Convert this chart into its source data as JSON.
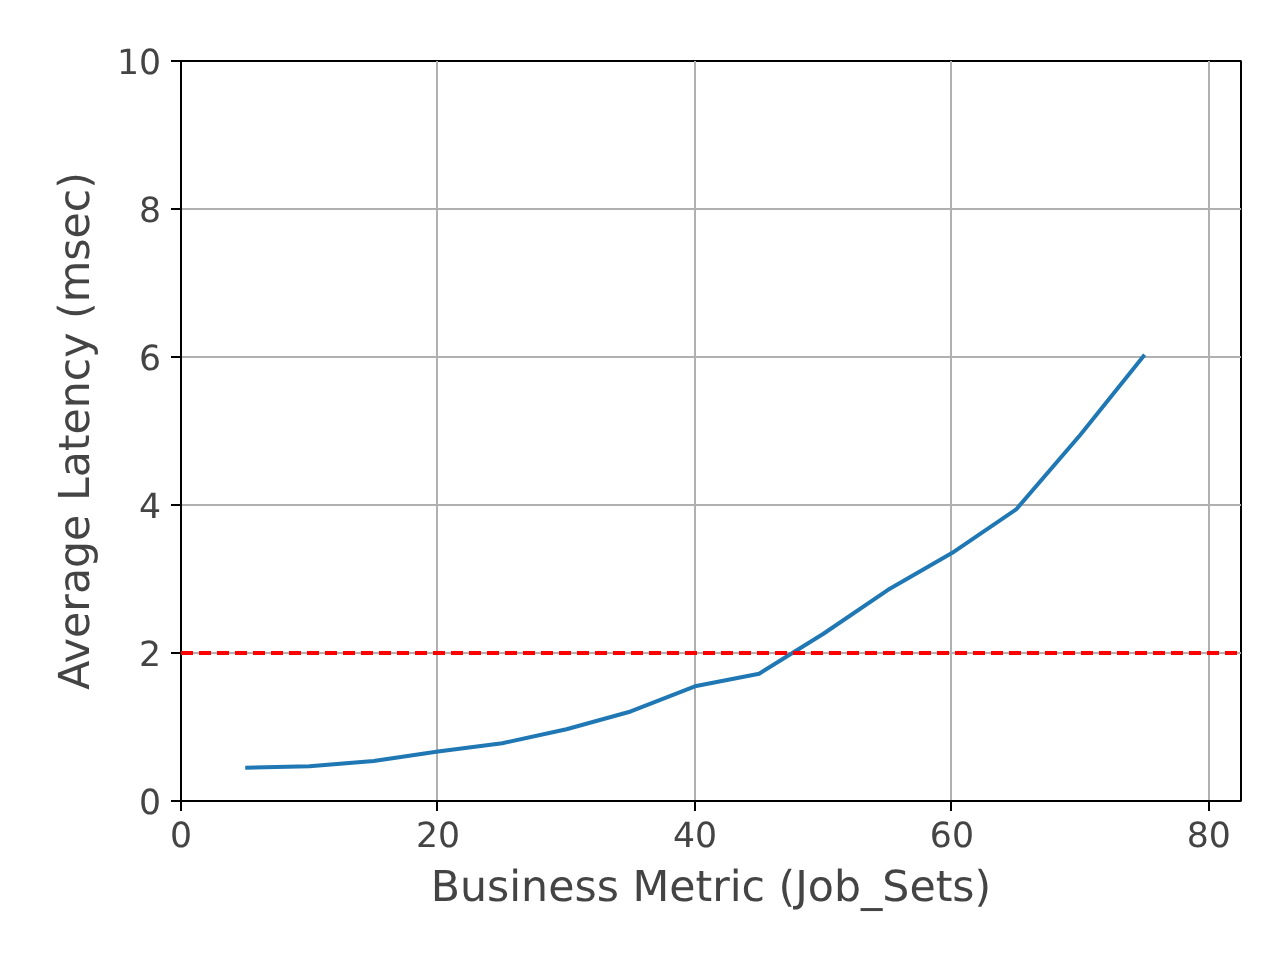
{
  "chart_data": {
    "type": "line",
    "xlabel": "Business Metric (Job_Sets)",
    "ylabel": "Average Latency (msec)",
    "x": [
      5,
      10,
      15,
      20,
      25,
      30,
      35,
      40,
      45,
      50,
      55,
      60,
      65,
      70,
      75
    ],
    "series": [
      {
        "color": "#1f77b4",
        "values": [
          0.45,
          0.47,
          0.54,
          0.67,
          0.78,
          0.97,
          1.21,
          1.55,
          1.72,
          2.26,
          2.85,
          3.35,
          3.94,
          4.95,
          6.03
        ]
      }
    ],
    "xlim": [
      0,
      82.5
    ],
    "ylim": [
      0,
      10
    ],
    "xticks": [
      0,
      20,
      40,
      60,
      80
    ],
    "yticks": [
      0,
      2,
      4,
      6,
      8,
      10
    ],
    "grid": true,
    "line_style": "solid",
    "ref_lines": [
      {
        "axis": "y",
        "value": 2,
        "color": "#ff0000",
        "line_style": "dashed"
      }
    ]
  }
}
